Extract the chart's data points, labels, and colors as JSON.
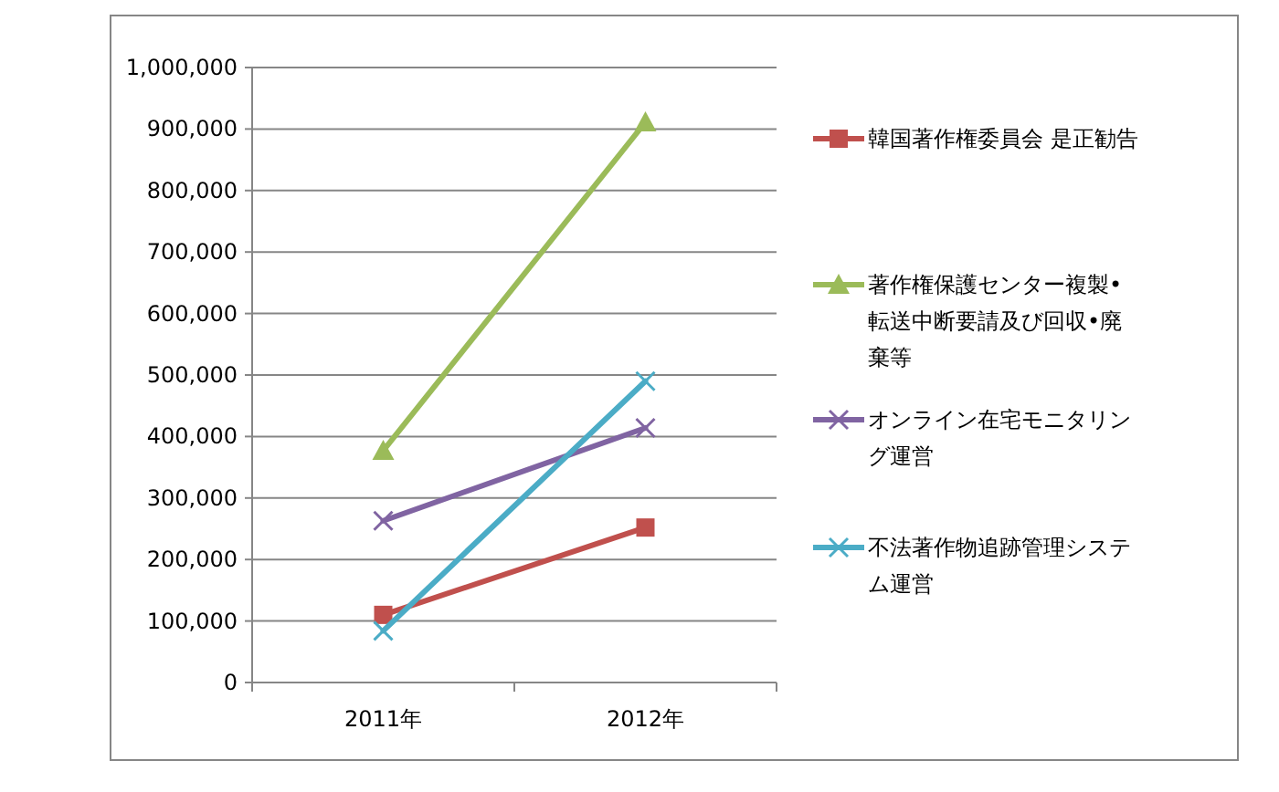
{
  "chart_data": {
    "type": "line",
    "categories": [
      "2011年",
      "2012年"
    ],
    "ylim": [
      0,
      1000000
    ],
    "yticks": [
      {
        "value": 0,
        "label": "0"
      },
      {
        "value": 100000,
        "label": "100,000"
      },
      {
        "value": 200000,
        "label": "200,000"
      },
      {
        "value": 300000,
        "label": "300,000"
      },
      {
        "value": 400000,
        "label": "400,000"
      },
      {
        "value": 500000,
        "label": "500,000"
      },
      {
        "value": 600000,
        "label": "600,000"
      },
      {
        "value": 700000,
        "label": "700,000"
      },
      {
        "value": 800000,
        "label": "800,000"
      },
      {
        "value": 900000,
        "label": "900,000"
      },
      {
        "value": 1000000,
        "label": "1,000,000"
      }
    ],
    "grid": "y",
    "legend": "right",
    "line_style": "solid",
    "series": [
      {
        "name": "韓国著作権委員会 是正勧告",
        "color": "#c0504d",
        "marker": "square",
        "values": [
          110000,
          252000
        ]
      },
      {
        "name": "著作権保護センター複製•転送中断要請及び回収•廃棄等",
        "color": "#9bbb59",
        "marker": "triangle",
        "values": [
          377000,
          911000
        ]
      },
      {
        "name": "オンライン在宅モニタリング運営",
        "color": "#8064a2",
        "marker": "cross",
        "values": [
          263000,
          414000
        ]
      },
      {
        "name": "不法著作物追跡管理システム運営",
        "color": "#4bacc6",
        "marker": "cross",
        "values": [
          84000,
          490000
        ]
      }
    ]
  }
}
